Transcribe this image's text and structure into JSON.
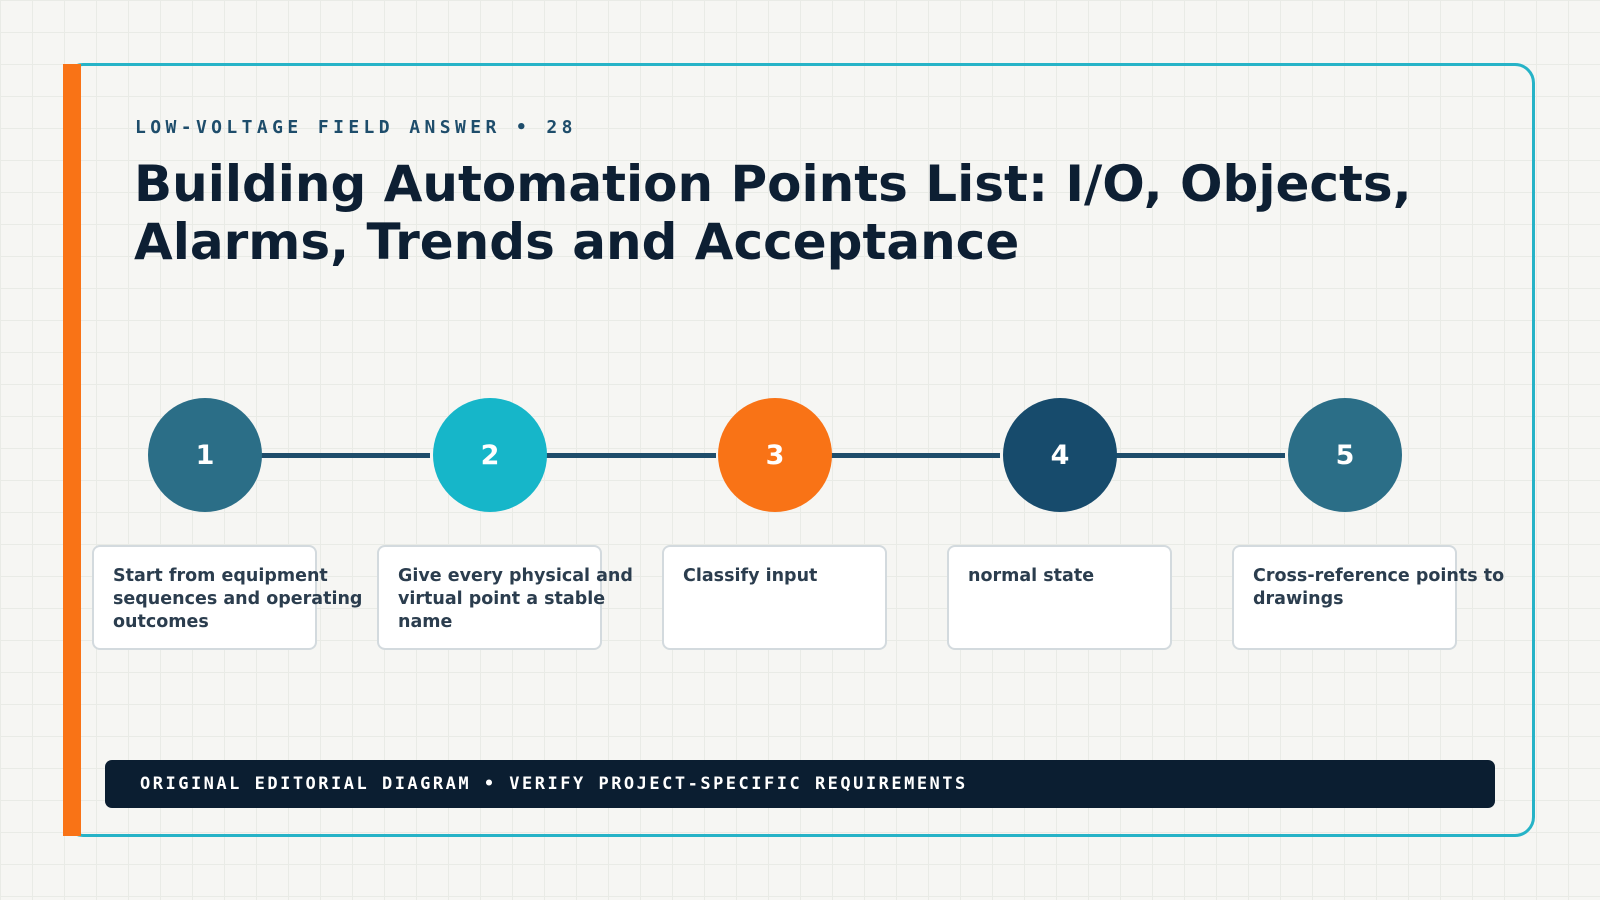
{
  "header": {
    "eyebrow": "LOW-VOLTAGE FIELD ANSWER • 28",
    "title": "Building Automation Points List: I/O, Objects, Alarms, Trends and Acceptance"
  },
  "steps": [
    {
      "number": "1",
      "text": "Start from equipment sequences and operating outcomes",
      "color": "#2b6e87"
    },
    {
      "number": "2",
      "text": "Give every physical and virtual point a stable name",
      "color": "#16b6c9"
    },
    {
      "number": "3",
      "text": "Classify input",
      "color": "#f97316"
    },
    {
      "number": "4",
      "text": "normal state",
      "color": "#174b6c"
    },
    {
      "number": "5",
      "text": "Cross-reference points to drawings",
      "color": "#2b6e87"
    }
  ],
  "footer": {
    "text": "ORIGINAL EDITORIAL DIAGRAM • VERIFY PROJECT-SPECIFIC REQUIREMENTS"
  },
  "colors": {
    "accent": "#f97316",
    "frame": "#26b3c7",
    "connector": "#1e4d6b",
    "footer_bg": "#0b1e31"
  }
}
